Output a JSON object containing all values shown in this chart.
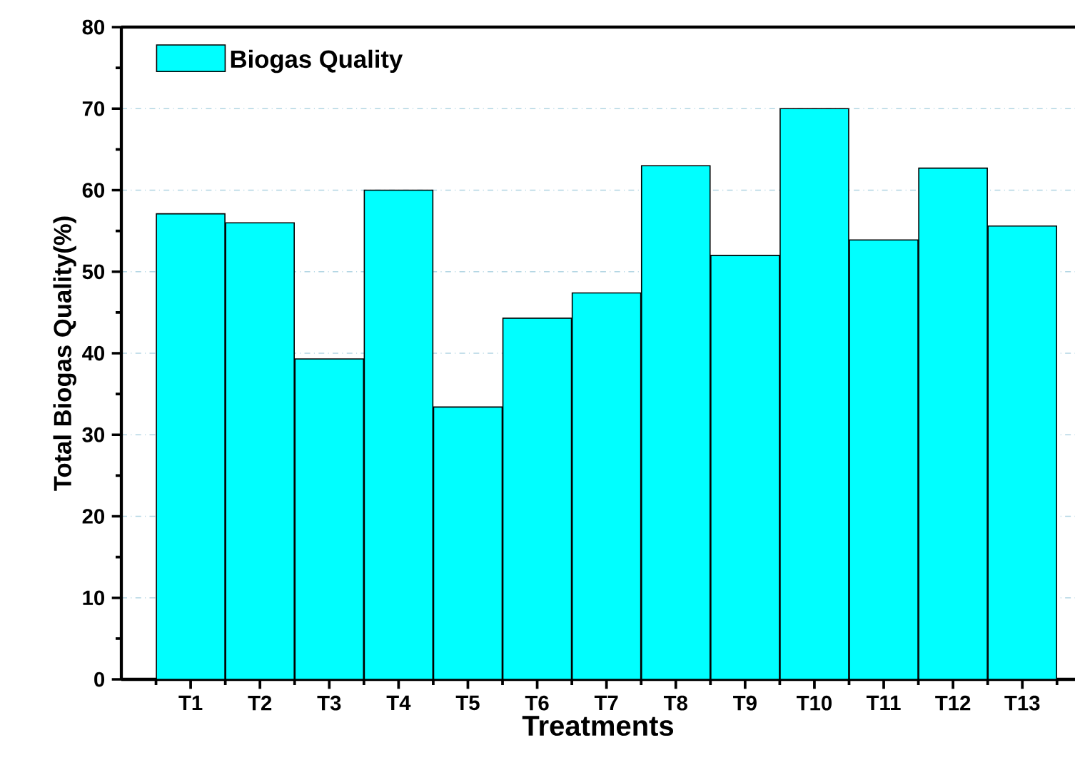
{
  "chart_data": {
    "type": "bar",
    "xlabel": "Treatments",
    "ylabel": "Total Biogas Quality(%)",
    "categories": [
      "T1",
      "T2",
      "T3",
      "T4",
      "T5",
      "T6",
      "T7",
      "T8",
      "T9",
      "T10",
      "T11",
      "T12",
      "T13"
    ],
    "series": [
      {
        "name": "Biogas Quality",
        "color": "#00ffff",
        "values": [
          57.1,
          56.0,
          39.3,
          60.0,
          33.4,
          44.3,
          47.4,
          63.0,
          52.0,
          70.0,
          53.9,
          62.7,
          55.6
        ]
      }
    ],
    "ylim": [
      0,
      80
    ],
    "yticks": [
      0,
      10,
      20,
      30,
      40,
      50,
      60,
      70,
      80
    ],
    "grid": "y",
    "legend": "top left"
  }
}
